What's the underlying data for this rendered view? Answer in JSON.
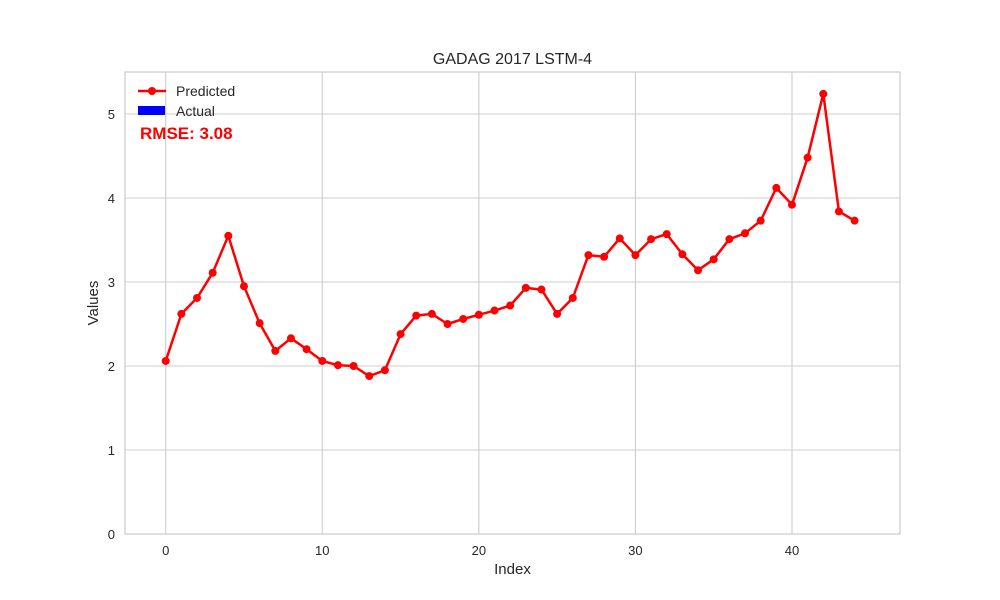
{
  "chart_data": {
    "type": "line",
    "title": "GADAG 2017 LSTM-4",
    "xlabel": "Index",
    "ylabel": "Values",
    "xlim": [
      -2.6,
      46.9
    ],
    "ylim": [
      0,
      5.5
    ],
    "xticks": [
      0,
      10,
      20,
      30,
      40
    ],
    "yticks": [
      0,
      1,
      2,
      3,
      4,
      5
    ],
    "grid": true,
    "legend_position": "top-left",
    "annotation": "RMSE: 3.08",
    "series": [
      {
        "name": "Predicted",
        "color": "#ff0000",
        "marker": "circle",
        "x": [
          0,
          1,
          2,
          3,
          4,
          5,
          6,
          7,
          8,
          9,
          10,
          11,
          12,
          13,
          14,
          15,
          16,
          17,
          18,
          19,
          20,
          21,
          22,
          23,
          24,
          25,
          26,
          27,
          28,
          29,
          30,
          31,
          32,
          33,
          34,
          35,
          36,
          37,
          38,
          39,
          40,
          41,
          42,
          43,
          44
        ],
        "values": [
          2.06,
          2.62,
          2.81,
          3.11,
          3.55,
          2.95,
          2.51,
          2.18,
          2.33,
          2.2,
          2.06,
          2.01,
          2.0,
          1.88,
          1.95,
          2.38,
          2.6,
          2.62,
          2.5,
          2.56,
          2.61,
          2.66,
          2.72,
          2.93,
          2.91,
          2.62,
          2.81,
          3.32,
          3.3,
          3.52,
          3.32,
          3.51,
          3.57,
          3.33,
          3.14,
          3.27,
          3.51,
          3.58,
          3.73,
          4.12,
          3.92,
          4.48,
          5.24,
          3.84,
          3.73
        ]
      },
      {
        "name": "Actual",
        "color": "#0000ff",
        "values": []
      }
    ]
  }
}
